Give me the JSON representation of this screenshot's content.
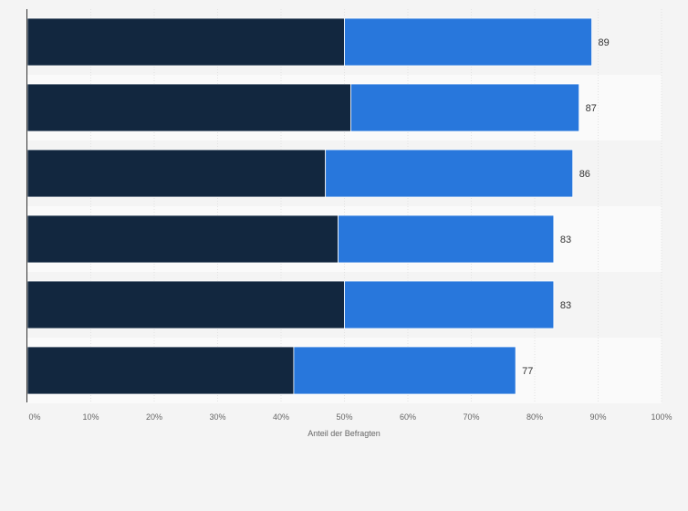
{
  "chart_data": {
    "type": "bar",
    "orientation": "horizontal",
    "stacked": true,
    "xlabel": "Anteil der Befragten",
    "xlim": [
      0,
      100
    ],
    "x_ticks": [
      "0%",
      "10%",
      "20%",
      "30%",
      "40%",
      "50%",
      "60%",
      "70%",
      "80%",
      "90%",
      "100%"
    ],
    "grid": true,
    "categories": [
      "",
      "",
      "",
      "",
      "",
      ""
    ],
    "series": [
      {
        "values": [
          50,
          51,
          47,
          49,
          50,
          42
        ],
        "color": "#12273f"
      },
      {
        "values": [
          39,
          36,
          39,
          34,
          33,
          35
        ],
        "color": "#2877dc"
      }
    ],
    "totals": [
      "89",
      "87",
      "86",
      "83",
      "83",
      "77"
    ]
  }
}
